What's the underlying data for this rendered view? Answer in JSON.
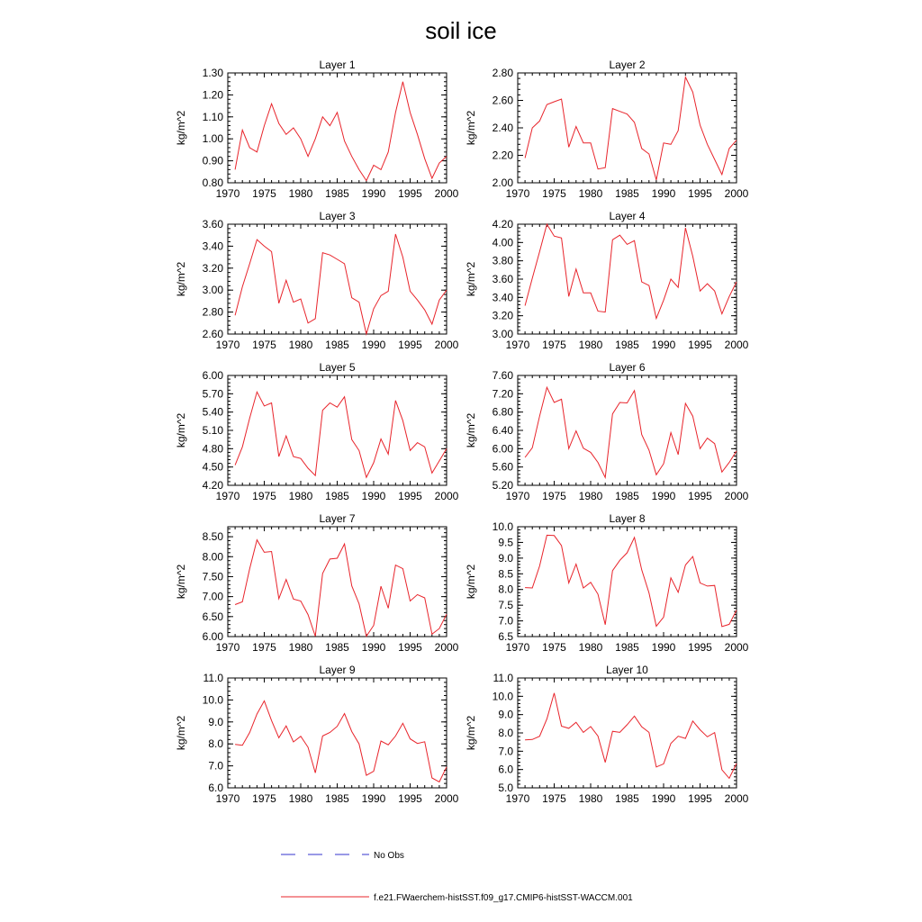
{
  "title": "soil ice",
  "legend": {
    "items": [
      {
        "label": "No Obs",
        "color": "#3333cc",
        "dash": true
      },
      {
        "label": "f.e21.FWaerchem-histSST.f09_g17.CMIP6-histSST-WACCM.001",
        "color": "#e8242b",
        "dash": false
      }
    ]
  },
  "chart_data": [
    {
      "type": "line",
      "title": "Layer 1",
      "ylabel": "kg/m^2",
      "xlim": [
        1970,
        2000
      ],
      "ylim": [
        0.8,
        1.3
      ],
      "yticks": [
        "0.80",
        "0.90",
        "1.00",
        "1.10",
        "1.20",
        "1.30"
      ],
      "xticks": [
        "1970",
        "1975",
        "1980",
        "1985",
        "1990",
        "1995",
        "2000"
      ],
      "series": [
        {
          "color": "#e8242b",
          "x": [
            1971,
            1972,
            1973,
            1974,
            1975,
            1976,
            1977,
            1978,
            1979,
            1980,
            1981,
            1982,
            1983,
            1984,
            1985,
            1986,
            1987,
            1988,
            1989,
            1990,
            1991,
            1992,
            1993,
            1994,
            1995,
            1996,
            1997,
            1998,
            1999,
            2000
          ],
          "values": [
            0.86,
            1.04,
            0.96,
            0.94,
            1.06,
            1.16,
            1.07,
            1.02,
            1.05,
            1.0,
            0.92,
            1.0,
            1.1,
            1.06,
            1.12,
            0.99,
            0.92,
            0.86,
            0.81,
            0.88,
            0.86,
            0.94,
            1.12,
            1.26,
            1.12,
            1.02,
            0.91,
            0.82,
            0.89,
            0.92
          ]
        }
      ]
    },
    {
      "type": "line",
      "title": "Layer 2",
      "ylabel": "kg/m^2",
      "xlim": [
        1970,
        2000
      ],
      "ylim": [
        2.0,
        2.8
      ],
      "yticks": [
        "2.00",
        "2.20",
        "2.40",
        "2.60",
        "2.80"
      ],
      "xticks": [
        "1970",
        "1975",
        "1980",
        "1985",
        "1990",
        "1995",
        "2000"
      ],
      "series": [
        {
          "color": "#e8242b",
          "x": [
            1971,
            1972,
            1973,
            1974,
            1975,
            1976,
            1977,
            1978,
            1979,
            1980,
            1981,
            1982,
            1983,
            1984,
            1985,
            1986,
            1987,
            1988,
            1989,
            1990,
            1991,
            1992,
            1993,
            1994,
            1995,
            1996,
            1997,
            1998,
            1999,
            2000
          ],
          "values": [
            2.18,
            2.4,
            2.45,
            2.57,
            2.59,
            2.61,
            2.26,
            2.41,
            2.29,
            2.29,
            2.1,
            2.11,
            2.54,
            2.52,
            2.5,
            2.44,
            2.25,
            2.21,
            2.02,
            2.29,
            2.28,
            2.38,
            2.77,
            2.66,
            2.42,
            2.28,
            2.17,
            2.06,
            2.25,
            2.31
          ]
        }
      ]
    },
    {
      "type": "line",
      "title": "Layer 3",
      "ylabel": "kg/m^2",
      "xlim": [
        1970,
        2000
      ],
      "ylim": [
        2.6,
        3.6
      ],
      "yticks": [
        "2.60",
        "2.80",
        "3.00",
        "3.20",
        "3.40",
        "3.60"
      ],
      "xticks": [
        "1970",
        "1975",
        "1980",
        "1985",
        "1990",
        "1995",
        "2000"
      ],
      "series": [
        {
          "color": "#e8242b",
          "x": [
            1971,
            1972,
            1973,
            1974,
            1975,
            1976,
            1977,
            1978,
            1979,
            1980,
            1981,
            1982,
            1983,
            1984,
            1985,
            1986,
            1987,
            1988,
            1989,
            1990,
            1991,
            1992,
            1993,
            1994,
            1995,
            1996,
            1997,
            1998,
            1999,
            2000
          ],
          "values": [
            2.77,
            3.03,
            3.24,
            3.46,
            3.4,
            3.35,
            2.88,
            3.09,
            2.89,
            2.92,
            2.7,
            2.74,
            3.34,
            3.32,
            3.28,
            3.24,
            2.93,
            2.89,
            2.6,
            2.83,
            2.95,
            2.99,
            3.51,
            3.3,
            2.99,
            2.91,
            2.82,
            2.69,
            2.91,
            3.0
          ]
        }
      ]
    },
    {
      "type": "line",
      "title": "Layer 4",
      "ylabel": "kg/m^2",
      "xlim": [
        1970,
        2000
      ],
      "ylim": [
        3.0,
        4.2
      ],
      "yticks": [
        "3.00",
        "3.20",
        "3.40",
        "3.60",
        "3.80",
        "4.00",
        "4.20"
      ],
      "xticks": [
        "1970",
        "1975",
        "1980",
        "1985",
        "1990",
        "1995",
        "2000"
      ],
      "series": [
        {
          "color": "#e8242b",
          "x": [
            1971,
            1972,
            1973,
            1974,
            1975,
            1976,
            1977,
            1978,
            1979,
            1980,
            1981,
            1982,
            1983,
            1984,
            1985,
            1986,
            1987,
            1988,
            1989,
            1990,
            1991,
            1992,
            1993,
            1994,
            1995,
            1996,
            1997,
            1998,
            1999,
            2000
          ],
          "values": [
            3.31,
            3.61,
            3.9,
            4.2,
            4.07,
            4.05,
            3.41,
            3.71,
            3.45,
            3.45,
            3.25,
            3.24,
            4.03,
            4.08,
            3.98,
            4.02,
            3.57,
            3.53,
            3.17,
            3.37,
            3.6,
            3.51,
            4.16,
            3.85,
            3.47,
            3.55,
            3.47,
            3.22,
            3.41,
            3.57
          ]
        }
      ]
    },
    {
      "type": "line",
      "title": "Layer 5",
      "ylabel": "kg/m^2",
      "xlim": [
        1970,
        2000
      ],
      "ylim": [
        4.2,
        6.0
      ],
      "yticks": [
        "4.20",
        "4.50",
        "4.80",
        "5.10",
        "5.40",
        "5.70",
        "6.00"
      ],
      "xticks": [
        "1970",
        "1975",
        "1980",
        "1985",
        "1990",
        "1995",
        "2000"
      ],
      "series": [
        {
          "color": "#e8242b",
          "x": [
            1971,
            1972,
            1973,
            1974,
            1975,
            1976,
            1977,
            1978,
            1979,
            1980,
            1981,
            1982,
            1983,
            1984,
            1985,
            1986,
            1987,
            1988,
            1989,
            1990,
            1991,
            1992,
            1993,
            1994,
            1995,
            1996,
            1997,
            1998,
            1999,
            2000
          ],
          "values": [
            4.53,
            4.83,
            5.3,
            5.73,
            5.5,
            5.55,
            4.67,
            5.01,
            4.67,
            4.64,
            4.48,
            4.36,
            5.43,
            5.55,
            5.48,
            5.65,
            4.95,
            4.77,
            4.33,
            4.57,
            4.96,
            4.71,
            5.59,
            5.26,
            4.77,
            4.9,
            4.83,
            4.4,
            4.6,
            4.8
          ]
        }
      ]
    },
    {
      "type": "line",
      "title": "Layer 6",
      "ylabel": "kg/m^2",
      "xlim": [
        1970,
        2000
      ],
      "ylim": [
        5.2,
        7.6
      ],
      "yticks": [
        "5.20",
        "5.60",
        "6.00",
        "6.40",
        "6.80",
        "7.20",
        "7.60"
      ],
      "xticks": [
        "1970",
        "1975",
        "1980",
        "1985",
        "1990",
        "1995",
        "2000"
      ],
      "series": [
        {
          "color": "#e8242b",
          "x": [
            1971,
            1972,
            1973,
            1974,
            1975,
            1976,
            1977,
            1978,
            1979,
            1980,
            1981,
            1982,
            1983,
            1984,
            1985,
            1986,
            1987,
            1988,
            1989,
            1990,
            1991,
            1992,
            1993,
            1994,
            1995,
            1996,
            1997,
            1998,
            1999,
            2000
          ],
          "values": [
            5.81,
            6.02,
            6.71,
            7.34,
            7.01,
            7.08,
            6.0,
            6.39,
            6.01,
            5.92,
            5.7,
            5.37,
            6.76,
            7.01,
            7.0,
            7.27,
            6.31,
            5.97,
            5.43,
            5.67,
            6.35,
            5.87,
            6.99,
            6.71,
            6.0,
            6.23,
            6.11,
            5.49,
            5.7,
            5.95
          ]
        }
      ]
    },
    {
      "type": "line",
      "title": "Layer 7",
      "ylabel": "kg/m^2",
      "xlim": [
        1970,
        2000
      ],
      "ylim": [
        6.0,
        8.75
      ],
      "yticks": [
        "6.00",
        "6.50",
        "7.00",
        "7.50",
        "8.00",
        "8.50"
      ],
      "xticks": [
        "1970",
        "1975",
        "1980",
        "1985",
        "1990",
        "1995",
        "2000"
      ],
      "series": [
        {
          "color": "#e8242b",
          "x": [
            1971,
            1972,
            1973,
            1974,
            1975,
            1976,
            1977,
            1978,
            1979,
            1980,
            1981,
            1982,
            1983,
            1984,
            1985,
            1986,
            1987,
            1988,
            1989,
            1990,
            1991,
            1992,
            1993,
            1994,
            1995,
            1996,
            1997,
            1998,
            1999,
            2000
          ],
          "values": [
            6.8,
            6.87,
            7.7,
            8.42,
            8.11,
            8.13,
            6.95,
            7.43,
            6.94,
            6.89,
            6.55,
            6.01,
            7.58,
            7.94,
            7.96,
            8.32,
            7.27,
            6.82,
            6.01,
            6.28,
            7.26,
            6.71,
            7.79,
            7.7,
            6.89,
            7.05,
            6.97,
            6.06,
            6.2,
            6.56
          ]
        }
      ]
    },
    {
      "type": "line",
      "title": "Layer 8",
      "ylabel": "kg/m^2",
      "xlim": [
        1970,
        2000
      ],
      "ylim": [
        6.5,
        10.0
      ],
      "yticks": [
        "6.5",
        "7.0",
        "7.5",
        "8.0",
        "8.5",
        "9.0",
        "9.5",
        "10.0"
      ],
      "xticks": [
        "1970",
        "1975",
        "1980",
        "1985",
        "1990",
        "1995",
        "2000"
      ],
      "series": [
        {
          "color": "#e8242b",
          "x": [
            1971,
            1972,
            1973,
            1974,
            1975,
            1976,
            1977,
            1978,
            1979,
            1980,
            1981,
            1982,
            1983,
            1984,
            1985,
            1986,
            1987,
            1988,
            1989,
            1990,
            1991,
            1992,
            1993,
            1994,
            1995,
            1996,
            1997,
            1998,
            1999,
            2000
          ],
          "values": [
            8.06,
            8.05,
            8.75,
            9.73,
            9.72,
            9.4,
            8.21,
            8.81,
            8.05,
            8.23,
            7.85,
            6.88,
            8.6,
            8.93,
            9.17,
            9.66,
            8.63,
            7.89,
            6.83,
            7.12,
            8.37,
            7.91,
            8.78,
            9.05,
            8.21,
            8.11,
            8.13,
            6.82,
            6.89,
            7.34
          ]
        }
      ]
    },
    {
      "type": "line",
      "title": "Layer 9",
      "ylabel": "kg/m^2",
      "xlim": [
        1970,
        2000
      ],
      "ylim": [
        6.0,
        11.0
      ],
      "yticks": [
        "6.0",
        "7.0",
        "8.0",
        "9.0",
        "10.0",
        "11.0"
      ],
      "xticks": [
        "1970",
        "1975",
        "1980",
        "1985",
        "1990",
        "1995",
        "2000"
      ],
      "series": [
        {
          "color": "#e8242b",
          "x": [
            1971,
            1972,
            1973,
            1974,
            1975,
            1976,
            1977,
            1978,
            1979,
            1980,
            1981,
            1982,
            1983,
            1984,
            1985,
            1986,
            1987,
            1988,
            1989,
            1990,
            1991,
            1992,
            1993,
            1994,
            1995,
            1996,
            1997,
            1998,
            1999,
            2000
          ],
          "values": [
            7.98,
            7.94,
            8.52,
            9.36,
            9.96,
            9.06,
            8.28,
            8.82,
            8.09,
            8.35,
            7.85,
            6.68,
            8.36,
            8.52,
            8.8,
            9.38,
            8.56,
            8.0,
            6.57,
            6.76,
            8.13,
            7.96,
            8.36,
            8.94,
            8.23,
            8.02,
            8.1,
            6.45,
            6.27,
            6.95
          ]
        }
      ]
    },
    {
      "type": "line",
      "title": "Layer 10",
      "ylabel": "kg/m^2",
      "xlim": [
        1970,
        2000
      ],
      "ylim": [
        5.0,
        11.0
      ],
      "yticks": [
        "5.0",
        "6.0",
        "7.0",
        "8.0",
        "9.0",
        "10.0",
        "11.0"
      ],
      "xticks": [
        "1970",
        "1975",
        "1980",
        "1985",
        "1990",
        "1995",
        "2000"
      ],
      "series": [
        {
          "color": "#e8242b",
          "x": [
            1971,
            1972,
            1973,
            1974,
            1975,
            1976,
            1977,
            1978,
            1979,
            1980,
            1981,
            1982,
            1983,
            1984,
            1985,
            1986,
            1987,
            1988,
            1989,
            1990,
            1991,
            1992,
            1993,
            1994,
            1995,
            1996,
            1997,
            1998,
            1999,
            2000
          ],
          "values": [
            7.62,
            7.64,
            7.82,
            8.76,
            10.18,
            8.37,
            8.25,
            8.58,
            8.03,
            8.35,
            7.83,
            6.39,
            8.09,
            8.03,
            8.45,
            8.92,
            8.34,
            8.03,
            6.14,
            6.31,
            7.43,
            7.82,
            7.7,
            8.65,
            8.17,
            7.79,
            8.02,
            5.99,
            5.52,
            6.33
          ]
        }
      ]
    }
  ]
}
